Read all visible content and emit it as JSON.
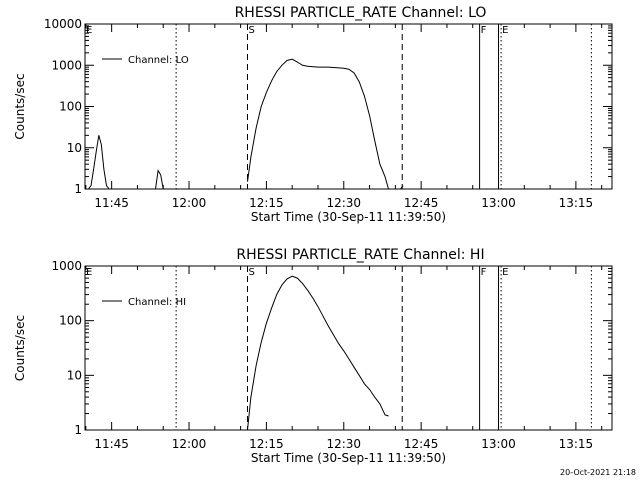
{
  "footer": "20-Oct-2021 21:18",
  "chart_data": [
    {
      "type": "line",
      "title": "RHESSI PARTICLE_RATE Channel: LO",
      "xlabel": "Start Time (30-Sep-11 11:39:50)",
      "ylabel": "Counts/sec",
      "yscale": "log",
      "xlim": [
        "11:39:50",
        "13:22:00"
      ],
      "ylim": [
        1,
        10000
      ],
      "xticks": [
        "11:45",
        "12:00",
        "12:15",
        "12:30",
        "12:45",
        "13:00",
        "13:15"
      ],
      "yticks": [
        "1",
        "10",
        "100",
        "1000",
        "10000"
      ],
      "legend": "Channel: LO",
      "legend_position": "top-left",
      "markers": [
        {
          "label": "E",
          "time": "11:39:50",
          "style": "dotted"
        },
        {
          "label": "",
          "time": "11:57:30",
          "style": "dotted"
        },
        {
          "label": "S",
          "time": "12:11:20",
          "style": "dashed"
        },
        {
          "label": "",
          "time": "12:41:20",
          "style": "dashed"
        },
        {
          "label": "F",
          "time": "12:56:20",
          "style": "solid"
        },
        {
          "label": "",
          "time": "13:00:00",
          "style": "solid"
        },
        {
          "label": "E",
          "time": "13:00:30",
          "style": "dotted"
        },
        {
          "label": "",
          "time": "13:18:00",
          "style": "dotted"
        }
      ],
      "segments": [
        [
          [
            "11:40:30",
            1
          ],
          [
            "11:41:00",
            1.2
          ],
          [
            "11:41:30",
            3
          ],
          [
            "11:42:00",
            8
          ],
          [
            "11:42:30",
            20
          ],
          [
            "11:43:00",
            12
          ],
          [
            "11:43:30",
            3
          ],
          [
            "11:44:00",
            1.2
          ],
          [
            "11:44:30",
            1
          ]
        ],
        [
          [
            "11:53:30",
            1
          ],
          [
            "11:54:00",
            2.8
          ],
          [
            "11:54:30",
            2.2
          ],
          [
            "11:55:00",
            1
          ]
        ],
        [
          [
            "12:11:20",
            1.5
          ],
          [
            "12:12:00",
            6
          ],
          [
            "12:13:00",
            30
          ],
          [
            "12:14:00",
            100
          ],
          [
            "12:15:00",
            220
          ],
          [
            "12:16:00",
            420
          ],
          [
            "12:17:00",
            700
          ],
          [
            "12:18:00",
            1000
          ],
          [
            "12:19:00",
            1300
          ],
          [
            "12:20:00",
            1400
          ],
          [
            "12:21:00",
            1200
          ],
          [
            "12:22:00",
            1000
          ],
          [
            "12:23:00",
            950
          ],
          [
            "12:25:00",
            900
          ],
          [
            "12:27:00",
            900
          ],
          [
            "12:30:00",
            850
          ],
          [
            "12:31:00",
            800
          ],
          [
            "12:32:00",
            650
          ],
          [
            "12:33:00",
            400
          ],
          [
            "12:34:00",
            180
          ],
          [
            "12:35:00",
            60
          ],
          [
            "12:36:00",
            15
          ],
          [
            "12:37:00",
            4
          ],
          [
            "12:38:00",
            2
          ],
          [
            "12:38:40",
            1
          ]
        ],
        [
          [
            "12:41:00",
            1
          ],
          [
            "12:41:30",
            1.2
          ]
        ]
      ]
    },
    {
      "type": "line",
      "title": "RHESSI PARTICLE_RATE Channel: HI",
      "xlabel": "Start Time (30-Sep-11 11:39:50)",
      "ylabel": "Counts/sec",
      "yscale": "log",
      "xlim": [
        "11:39:50",
        "13:22:00"
      ],
      "ylim": [
        1,
        1000
      ],
      "xticks": [
        "11:45",
        "12:00",
        "12:15",
        "12:30",
        "12:45",
        "13:00",
        "13:15"
      ],
      "yticks": [
        "1",
        "10",
        "100",
        "1000"
      ],
      "legend": "Channel: HI",
      "legend_position": "top-left",
      "markers": [
        {
          "label": "E",
          "time": "11:39:50",
          "style": "dotted"
        },
        {
          "label": "",
          "time": "11:57:30",
          "style": "dotted"
        },
        {
          "label": "S",
          "time": "12:11:20",
          "style": "dashed"
        },
        {
          "label": "",
          "time": "12:41:20",
          "style": "dashed"
        },
        {
          "label": "F",
          "time": "12:56:20",
          "style": "solid"
        },
        {
          "label": "",
          "time": "13:00:00",
          "style": "solid"
        },
        {
          "label": "E",
          "time": "13:00:30",
          "style": "dotted"
        },
        {
          "label": "",
          "time": "13:18:00",
          "style": "dotted"
        }
      ],
      "segments": [
        [
          [
            "12:11:20",
            1
          ],
          [
            "12:12:00",
            4
          ],
          [
            "12:13:00",
            15
          ],
          [
            "12:14:00",
            40
          ],
          [
            "12:15:00",
            90
          ],
          [
            "12:16:00",
            170
          ],
          [
            "12:17:00",
            300
          ],
          [
            "12:18:00",
            450
          ],
          [
            "12:19:00",
            580
          ],
          [
            "12:20:00",
            650
          ],
          [
            "12:21:00",
            600
          ],
          [
            "12:22:00",
            480
          ],
          [
            "12:23:00",
            360
          ],
          [
            "12:24:00",
            260
          ],
          [
            "12:25:00",
            180
          ],
          [
            "12:26:00",
            120
          ],
          [
            "12:27:00",
            80
          ],
          [
            "12:28:00",
            55
          ],
          [
            "12:29:00",
            38
          ],
          [
            "12:30:00",
            28
          ],
          [
            "12:31:00",
            20
          ],
          [
            "12:32:00",
            14
          ],
          [
            "12:33:00",
            10
          ],
          [
            "12:34:00",
            7
          ],
          [
            "12:35:00",
            5.5
          ],
          [
            "12:36:00",
            4
          ],
          [
            "12:37:00",
            3
          ],
          [
            "12:38:00",
            1.9
          ],
          [
            "12:38:40",
            1.8
          ]
        ]
      ]
    }
  ]
}
